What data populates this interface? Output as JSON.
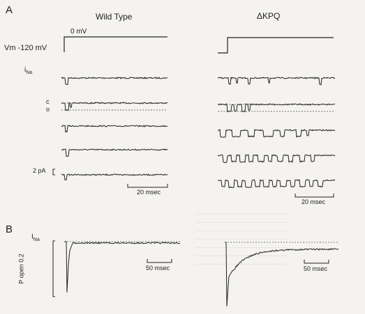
{
  "panel_a": {
    "letter": "A",
    "left_title": "Wild Type",
    "right_title": "ΔKPQ",
    "voltage_step_label": "0 mV",
    "holding_label": "Vm -120 mV",
    "current_label": "i",
    "current_subscript": "Na",
    "closed_label": "c",
    "open_label": "o",
    "amp_scale_label": "2 pA",
    "time_scale_label": "20 msec",
    "traces_per_condition": 5
  },
  "panel_b": {
    "letter": "B",
    "current_label": "I",
    "current_subscript": "Na",
    "y_axis_label": "P open 0.2",
    "time_scale_label": "50 msec"
  },
  "colors": {
    "ink": "#222222",
    "paper": "#f4f3ef",
    "bleed_through": "#d8d6d1"
  }
}
